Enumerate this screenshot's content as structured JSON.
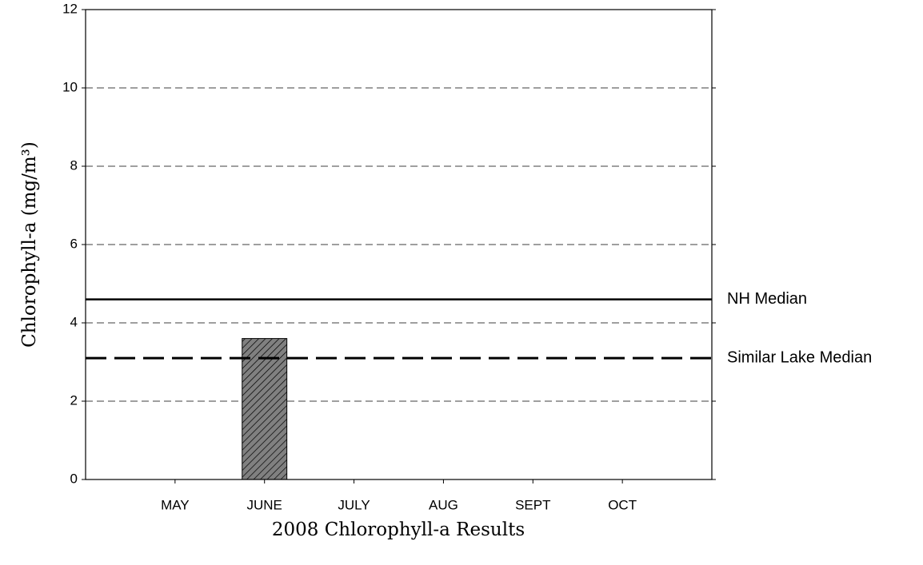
{
  "chart_data": {
    "type": "bar",
    "title": "2008 Chlorophyll-a Results",
    "y_label": "Chlorophyll-a (mg/m³)",
    "categories": [
      "MAY",
      "JUNE",
      "JULY",
      "AUG",
      "SEPT",
      "OCT"
    ],
    "values": [
      null,
      3.6,
      null,
      null,
      null,
      null
    ],
    "color": "#808080",
    "hatch": true,
    "ylim": [
      0,
      12
    ],
    "yticks": [
      0,
      2,
      4,
      6,
      8,
      10,
      12
    ],
    "grid": true,
    "reference_lines": [
      {
        "name": "NH Median",
        "value": 4.6,
        "style": "solid"
      },
      {
        "name": "Similar Lake Median",
        "value": 3.1,
        "style": "dashed"
      }
    ]
  }
}
